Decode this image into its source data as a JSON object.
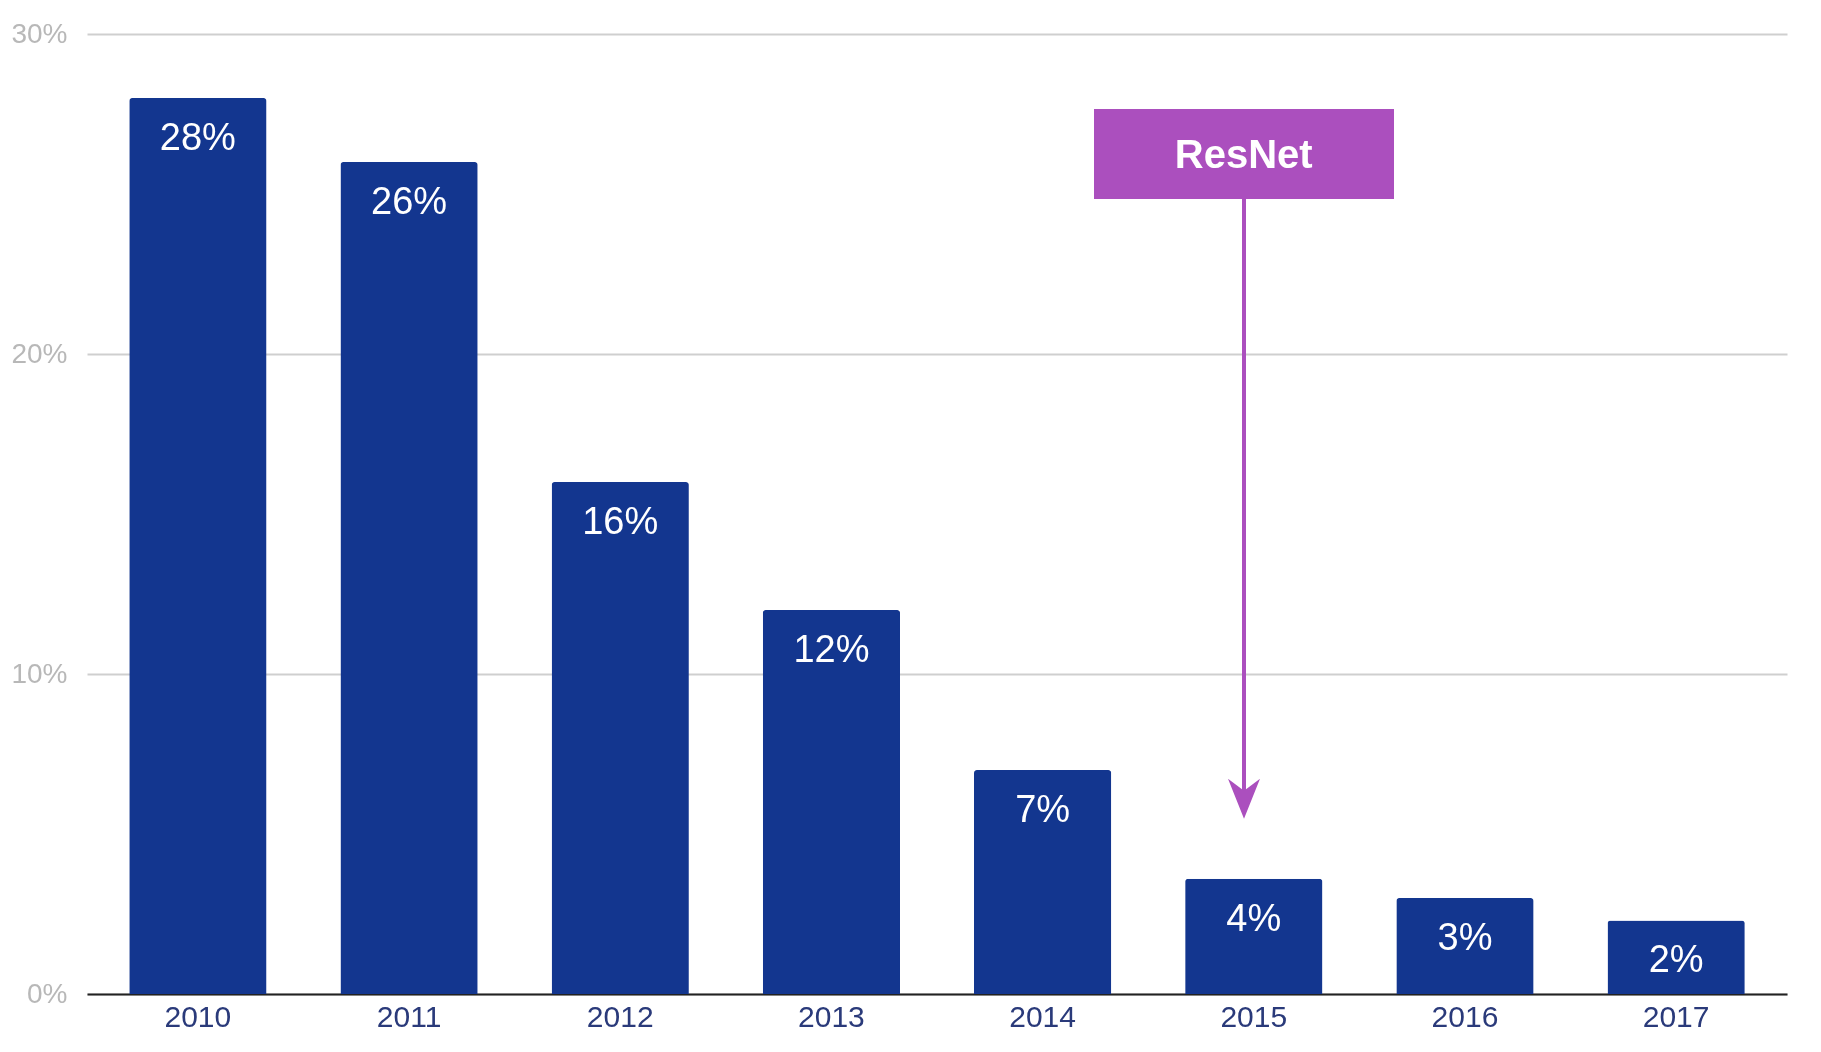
{
  "chart_data": {
    "type": "bar",
    "categories": [
      "2010",
      "2011",
      "2012",
      "2013",
      "2014",
      "2015",
      "2016",
      "2017"
    ],
    "values": [
      28,
      26,
      16,
      12,
      7,
      3.6,
      3,
      2.3
    ],
    "value_labels": [
      "28%",
      "26%",
      "16%",
      "12%",
      "7%",
      "4%",
      "3%",
      "2%"
    ],
    "color": "#13368f",
    "ylim": [
      0,
      30
    ],
    "yticks": [
      {
        "value": 0,
        "label": "0%"
      },
      {
        "value": 10,
        "label": "10%"
      },
      {
        "value": 20,
        "label": "20%"
      },
      {
        "value": 30,
        "label": "30%"
      }
    ],
    "grid": "y",
    "annotations": [
      "ResNet"
    ]
  }
}
